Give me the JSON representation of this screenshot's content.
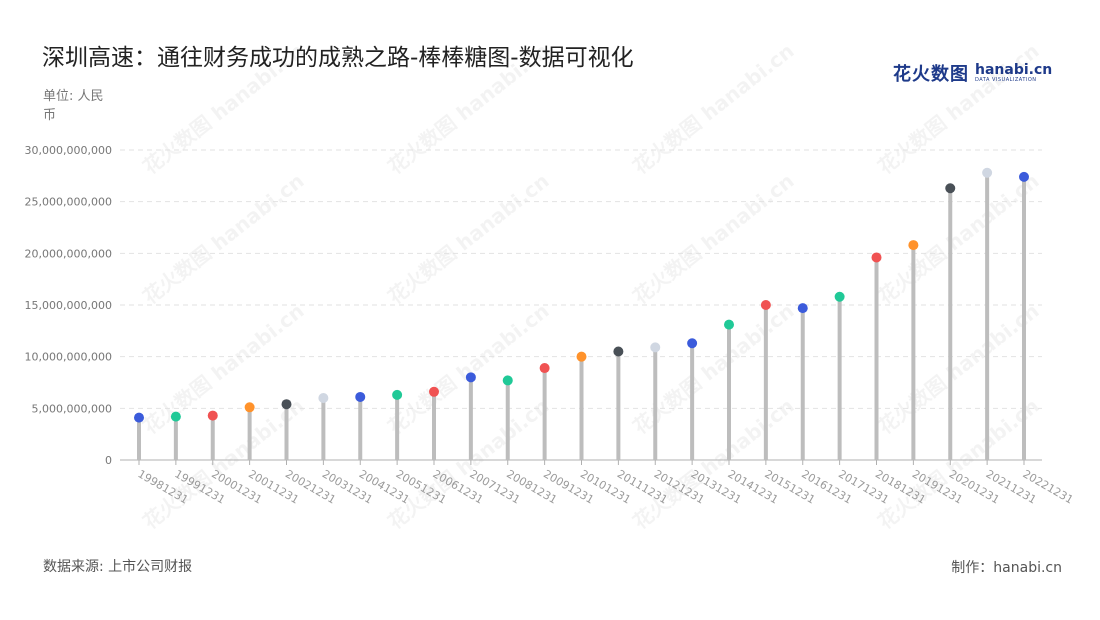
{
  "title": "深圳高速：通往财务成功的成熟之路-棒棒糖图-数据可视化",
  "unit_label": "单位: 人民币",
  "source_label": "数据来源: 上市公司财报",
  "credit_label": "制作：hanabi.cn",
  "logo": {
    "cn": "花火数图",
    "en": "hanabi.cn",
    "sub": "DATA VISUALIZATION"
  },
  "watermark_text": "花火数图 hanabi.cn",
  "chart_data": {
    "type": "lollipop",
    "ylim": [
      0,
      30000000000
    ],
    "yticks": [
      0,
      5000000000,
      10000000000,
      15000000000,
      20000000000,
      25000000000,
      30000000000
    ],
    "ytick_labels": [
      "0",
      "5,000,000,000",
      "10,000,000,000",
      "15,000,000,000",
      "20,000,000,000",
      "25,000,000,000",
      "30,000,000,000"
    ],
    "grid": true,
    "categories": [
      "19981231",
      "19991231",
      "20001231",
      "20011231",
      "20021231",
      "20031231",
      "20041231",
      "20051231",
      "20061231",
      "20071231",
      "20081231",
      "20091231",
      "20101231",
      "20111231",
      "20121231",
      "20131231",
      "20141231",
      "20151231",
      "20161231",
      "20171231",
      "20181231",
      "20191231",
      "20201231",
      "20211231",
      "20221231"
    ],
    "values": [
      4100000000,
      4200000000,
      4300000000,
      5100000000,
      5400000000,
      6000000000,
      6100000000,
      6300000000,
      6600000000,
      8000000000,
      7700000000,
      8900000000,
      10000000000,
      10500000000,
      10900000000,
      11300000000,
      13100000000,
      15000000000,
      14700000000,
      15800000000,
      19600000000,
      20800000000,
      26300000000,
      27800000000,
      27400000000
    ],
    "colors": [
      "#3b5bdb",
      "#20c997",
      "#f05252",
      "#ff922b",
      "#495057",
      "#d0d7e2",
      "#3b5bdb",
      "#20c997",
      "#f05252",
      "#3b5bdb",
      "#20c997",
      "#f05252",
      "#ff922b",
      "#495057",
      "#d0d7e2",
      "#3b5bdb",
      "#20c997",
      "#f05252",
      "#3b5bdb",
      "#20c997",
      "#f05252",
      "#ff922b",
      "#495057",
      "#d0d7e2",
      "#3b5bdb"
    ],
    "stem_color": "#bdbdbd"
  }
}
